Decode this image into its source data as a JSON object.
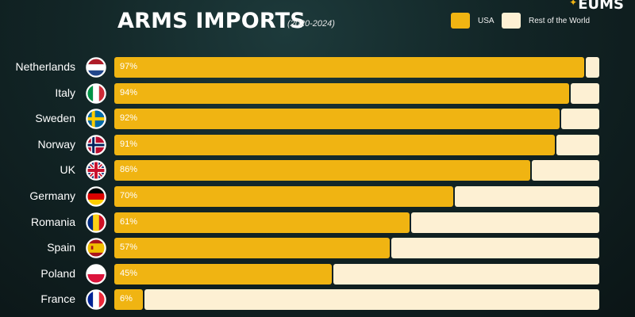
{
  "header": {
    "title": "ARMS IMPORTS",
    "subtitle": "(2020-2024)",
    "brand": "EUMS"
  },
  "legend": {
    "usa_label": "USA",
    "rest_label": "Rest of the World"
  },
  "colors": {
    "usa": "#f0b412",
    "rest": "#fdf0d3",
    "background": "#122526"
  },
  "chart_data": {
    "type": "bar",
    "orientation": "horizontal",
    "stacked": true,
    "title": "ARMS IMPORTS",
    "subtitle": "(2020-2024)",
    "categories": [
      "Netherlands",
      "Italy",
      "Sweden",
      "Norway",
      "UK",
      "Germany",
      "Romania",
      "Spain",
      "Poland",
      "France"
    ],
    "series": [
      {
        "name": "USA",
        "values": [
          97,
          94,
          92,
          91,
          86,
          70,
          61,
          57,
          45,
          6
        ]
      },
      {
        "name": "Rest of the World",
        "values": [
          3,
          6,
          8,
          9,
          14,
          30,
          39,
          43,
          55,
          94
        ]
      }
    ],
    "data_labels": [
      "97%",
      "94%",
      "92%",
      "91%",
      "86%",
      "70%",
      "61%",
      "57%",
      "45%",
      "6%"
    ],
    "xlim": [
      0,
      100
    ],
    "grid": false,
    "legend_position": "top-right",
    "flag_icons": [
      "netherlands-flag-icon",
      "italy-flag-icon",
      "sweden-flag-icon",
      "norway-flag-icon",
      "uk-flag-icon",
      "germany-flag-icon",
      "romania-flag-icon",
      "spain-flag-icon",
      "poland-flag-icon",
      "france-flag-icon"
    ]
  }
}
